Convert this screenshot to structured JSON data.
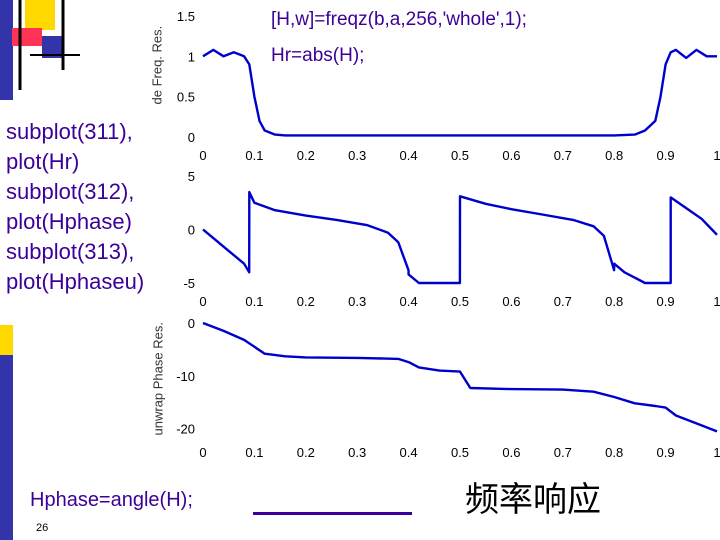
{
  "slide": {
    "code_top_line1": "[H,w]=freqz(b,a,256,'whole',1);",
    "code_top_line2": "Hr=abs(H);",
    "code_left": [
      "subplot(311),",
      "plot(Hr)",
      "subplot(312),",
      "plot(Hphase)",
      "subplot(313),",
      "plot(Hphaseu)"
    ],
    "code_bottom": "Hphase=angle(H);",
    "caption_cn": "频率响应",
    "page_number": "26"
  },
  "colors": {
    "code_text": "#3b0097",
    "curve": "#0000cc",
    "deco_yellow": "#ffd800",
    "deco_blue": "#3333aa",
    "deco_red": "#ff3355"
  },
  "chart_data": [
    {
      "type": "line",
      "ylabel": "de Freq. Res.",
      "xlim": [
        0,
        1
      ],
      "ylim": [
        0,
        1.5
      ],
      "xticks": [
        "0",
        "0.1",
        "0.2",
        "0.3",
        "0.4",
        "0.5",
        "0.6",
        "0.7",
        "0.8",
        "0.9",
        "1"
      ],
      "yticks": [
        "0",
        "0.5",
        "1",
        "1.5"
      ],
      "series": [
        {
          "x": [
            0,
            0.02,
            0.04,
            0.06,
            0.08,
            0.09,
            0.1,
            0.11,
            0.12,
            0.14,
            0.16,
            0.2,
            0.3,
            0.4,
            0.5,
            0.6,
            0.7,
            0.8,
            0.84,
            0.86,
            0.88,
            0.89,
            0.9,
            0.91,
            0.92,
            0.94,
            0.96,
            0.98,
            1.0
          ],
          "y": [
            1.0,
            1.08,
            1.0,
            1.05,
            1.0,
            0.9,
            0.5,
            0.2,
            0.08,
            0.03,
            0.02,
            0.02,
            0.02,
            0.02,
            0.02,
            0.02,
            0.02,
            0.02,
            0.03,
            0.08,
            0.2,
            0.5,
            0.9,
            1.05,
            1.08,
            0.98,
            1.08,
            1.0,
            1.0
          ]
        }
      ]
    },
    {
      "type": "line",
      "ylabel": "",
      "xlim": [
        0,
        1
      ],
      "ylim": [
        -5,
        5
      ],
      "xticks": [
        "0",
        "0.1",
        "0.2",
        "0.3",
        "0.4",
        "0.5",
        "0.6",
        "0.7",
        "0.8",
        "0.9",
        "1"
      ],
      "yticks": [
        "-5",
        "0",
        "5"
      ],
      "series": [
        {
          "x": [
            0,
            0.02,
            0.05,
            0.08,
            0.0899,
            0.09,
            0.1,
            0.14,
            0.2,
            0.26,
            0.32,
            0.36,
            0.38,
            0.3999,
            0.4,
            0.42,
            0.46,
            0.4999,
            0.5,
            0.55,
            0.6,
            0.66,
            0.72,
            0.76,
            0.78,
            0.7999,
            0.8,
            0.82,
            0.86,
            0.9,
            0.9099,
            0.91,
            0.94,
            0.97,
            0.99,
            1.0
          ],
          "y": [
            0,
            -0.8,
            -2.0,
            -3.2,
            -4.0,
            3.5,
            2.5,
            1.8,
            1.3,
            0.9,
            0.4,
            -0.3,
            -1.2,
            -3.8,
            -4.2,
            -5.0,
            -5.6,
            -6.5,
            3.1,
            2.4,
            1.9,
            1.4,
            0.9,
            0.3,
            -0.6,
            -3.8,
            -3.2,
            -4.0,
            -5.2,
            -6.0,
            -6.5,
            3.0,
            2.0,
            1.0,
            0.0,
            -0.5
          ]
        }
      ]
    },
    {
      "type": "line",
      "ylabel": "unwrap Phase Res.",
      "xlim": [
        0,
        1
      ],
      "ylim": [
        -21,
        0
      ],
      "xticks": [
        "0",
        "0.1",
        "0.2",
        "0.3",
        "0.4",
        "0.5",
        "0.6",
        "0.7",
        "0.8",
        "0.9",
        "1"
      ],
      "yticks": [
        "-20",
        "-10",
        "0"
      ],
      "series": [
        {
          "x": [
            0,
            0.04,
            0.08,
            0.1,
            0.12,
            0.16,
            0.2,
            0.3,
            0.38,
            0.4,
            0.42,
            0.46,
            0.5,
            0.52,
            0.6,
            0.7,
            0.76,
            0.8,
            0.84,
            0.88,
            0.9,
            0.92,
            0.96,
            1.0
          ],
          "y": [
            0,
            -1.5,
            -3.2,
            -4.5,
            -5.8,
            -6.3,
            -6.5,
            -6.6,
            -6.8,
            -7.4,
            -8.4,
            -9.0,
            -9.2,
            -12.3,
            -12.5,
            -12.6,
            -13.0,
            -14.0,
            -15.2,
            -15.7,
            -16.0,
            -17.5,
            -19.0,
            -20.5
          ]
        }
      ]
    }
  ]
}
